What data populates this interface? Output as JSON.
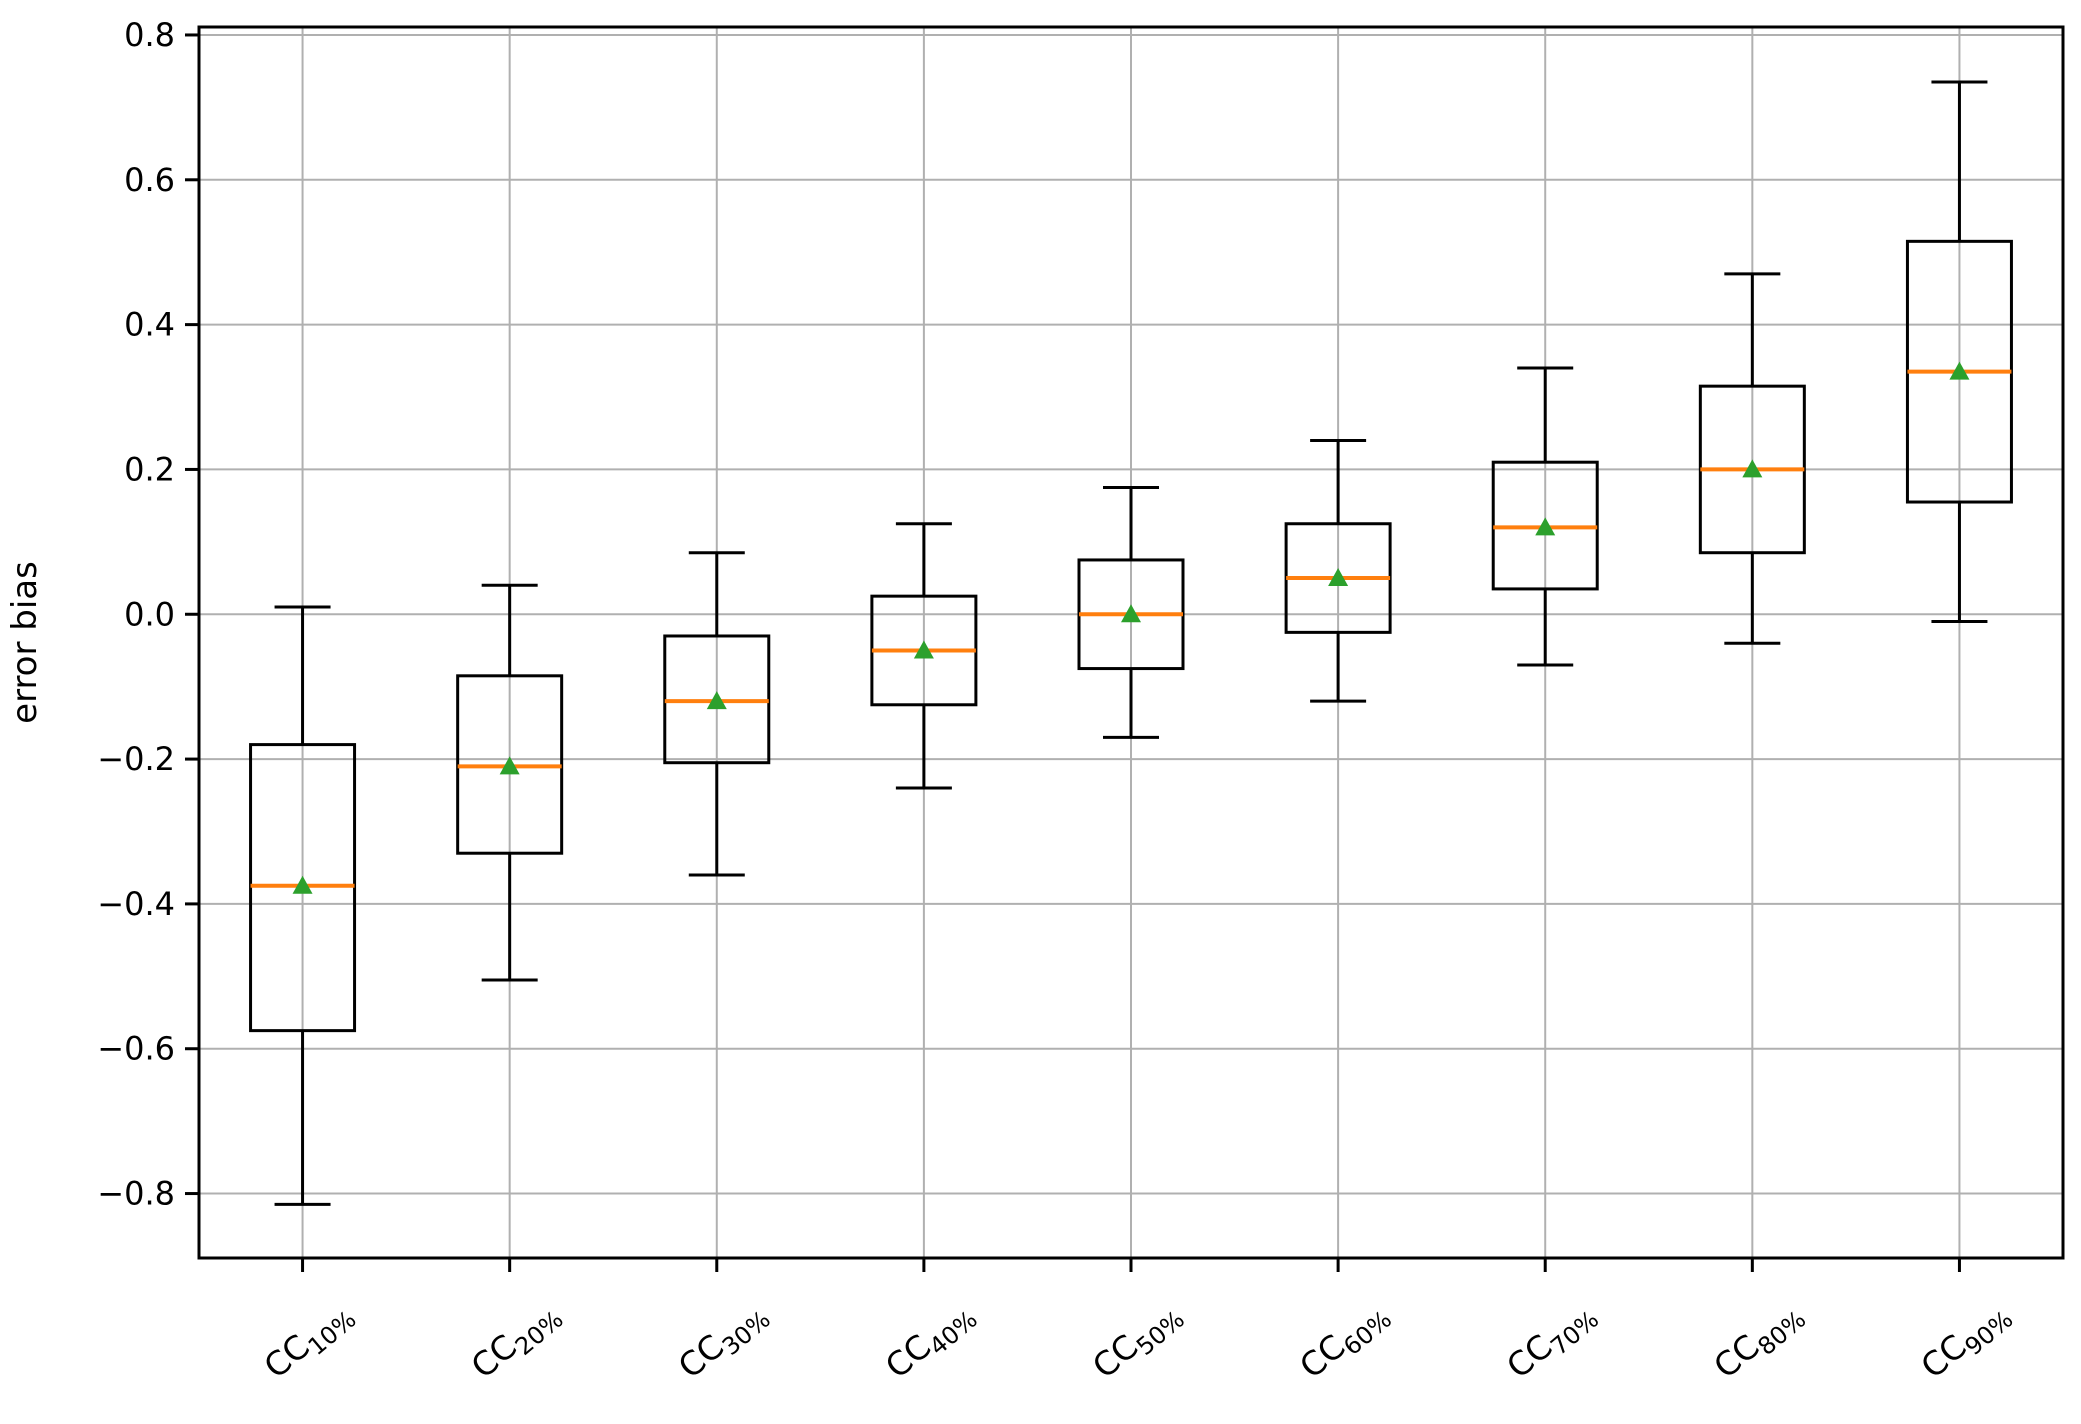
{
  "chart_data": {
    "type": "box",
    "title": "",
    "ylabel": "error bias",
    "xlabel": "",
    "grid": true,
    "legend": false,
    "ylim": [
      -0.889,
      0.811
    ],
    "yticks": [
      {
        "value": 0.8,
        "label": "0.8"
      },
      {
        "value": 0.6,
        "label": "0.6"
      },
      {
        "value": 0.4,
        "label": "0.4"
      },
      {
        "value": 0.2,
        "label": "0.2"
      },
      {
        "value": 0.0,
        "label": "0.0"
      },
      {
        "value": -0.2,
        "label": "−0.2"
      },
      {
        "value": -0.4,
        "label": "−0.4"
      },
      {
        "value": -0.6,
        "label": "−0.6"
      },
      {
        "value": -0.8,
        "label": "−0.8"
      }
    ],
    "categories": [
      {
        "main": "CC",
        "sub": "10%",
        "label": "CC10%"
      },
      {
        "main": "CC",
        "sub": "20%",
        "label": "CC20%"
      },
      {
        "main": "CC",
        "sub": "30%",
        "label": "CC30%"
      },
      {
        "main": "CC",
        "sub": "40%",
        "label": "CC40%"
      },
      {
        "main": "CC",
        "sub": "50%",
        "label": "CC50%"
      },
      {
        "main": "CC",
        "sub": "60%",
        "label": "CC60%"
      },
      {
        "main": "CC",
        "sub": "70%",
        "label": "CC70%"
      },
      {
        "main": "CC",
        "sub": "80%",
        "label": "CC80%"
      },
      {
        "main": "CC",
        "sub": "90%",
        "label": "CC90%"
      }
    ],
    "boxes": [
      {
        "category": "CC10%",
        "whislo": -0.815,
        "q1": -0.575,
        "median": -0.375,
        "mean": -0.375,
        "q3": -0.18,
        "whishi": 0.01
      },
      {
        "category": "CC20%",
        "whislo": -0.505,
        "q1": -0.33,
        "median": -0.21,
        "mean": -0.21,
        "q3": -0.085,
        "whishi": 0.04
      },
      {
        "category": "CC30%",
        "whislo": -0.36,
        "q1": -0.205,
        "median": -0.12,
        "mean": -0.12,
        "q3": -0.03,
        "whishi": 0.085
      },
      {
        "category": "CC40%",
        "whislo": -0.24,
        "q1": -0.125,
        "median": -0.05,
        "mean": -0.05,
        "q3": 0.025,
        "whishi": 0.125
      },
      {
        "category": "CC50%",
        "whislo": -0.17,
        "q1": -0.075,
        "median": 0.0,
        "mean": 0.0,
        "q3": 0.075,
        "whishi": 0.175
      },
      {
        "category": "CC60%",
        "whislo": -0.12,
        "q1": -0.025,
        "median": 0.05,
        "mean": 0.05,
        "q3": 0.125,
        "whishi": 0.24
      },
      {
        "category": "CC70%",
        "whislo": -0.07,
        "q1": 0.035,
        "median": 0.12,
        "mean": 0.12,
        "q3": 0.21,
        "whishi": 0.34
      },
      {
        "category": "CC80%",
        "whislo": -0.04,
        "q1": 0.085,
        "median": 0.2,
        "mean": 0.2,
        "q3": 0.315,
        "whishi": 0.47
      },
      {
        "category": "CC90%",
        "whislo": -0.01,
        "q1": 0.155,
        "median": 0.335,
        "mean": 0.335,
        "q3": 0.515,
        "whishi": 0.735
      }
    ],
    "colors": {
      "box_stroke": "#000000",
      "median": "#ff7f0e",
      "mean_marker": "#2ca02c",
      "grid": "#b0b0b0",
      "frame": "#000000",
      "text": "#000000",
      "background": "#ffffff"
    }
  }
}
